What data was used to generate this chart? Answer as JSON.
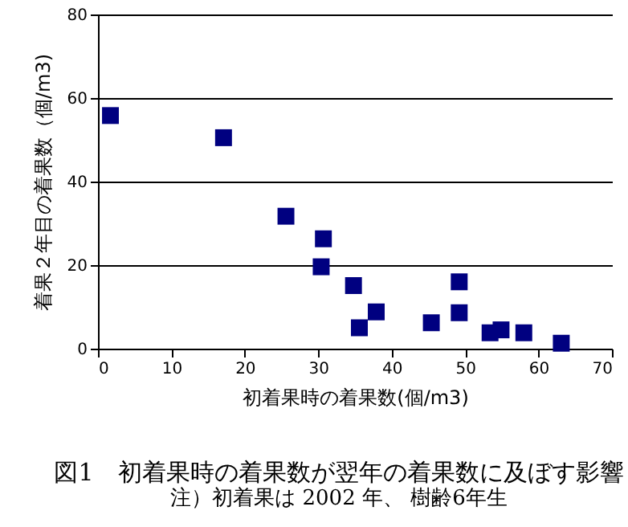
{
  "chart_data": {
    "type": "scatter",
    "title": "図1　初着果時の着果数が翌年の着果数に及ぼす影響",
    "xlabel": "初着果時の着果数(個/m3)",
    "ylabel": "着果２年目の着果数（個/m3)",
    "annotations": [
      "注）初着果は 2002 年、 樹齢6年生"
    ],
    "x": [
      1.7,
      17.1,
      25.6,
      30.7,
      30.4,
      34.8,
      35.6,
      37.9,
      45.4,
      49.2,
      49.2,
      53.4,
      54.9,
      58.0,
      63.1
    ],
    "series": [
      {
        "color": "#000080",
        "values": [
          55.8,
          50.5,
          31.7,
          26.3,
          19.6,
          15.1,
          5.0,
          8.8,
          6.2,
          16.0,
          8.6,
          3.8,
          4.5,
          3.8,
          1.3
        ]
      }
    ],
    "xlim": [
      0,
      70
    ],
    "xticks": [
      0,
      10,
      20,
      30,
      40,
      50,
      60,
      70
    ],
    "ylim": [
      0,
      80
    ],
    "yticks": [
      0,
      20,
      40,
      60,
      80
    ],
    "grid": "y",
    "marker": "square"
  }
}
